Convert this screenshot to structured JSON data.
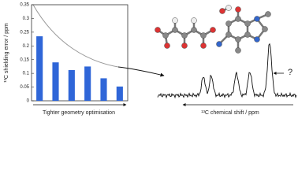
{
  "chart_data": {
    "type": "bar",
    "ylabel": "¹³C shielding error / ppm",
    "xlabel": "Tighter geometry optimisation",
    "annotations": [
      "¹³C chemical shift / ppm",
      "?"
    ],
    "categories": [
      null,
      null,
      null,
      null,
      null,
      null
    ],
    "values": [
      0.235,
      0.14,
      0.112,
      0.125,
      0.082,
      0.052
    ],
    "color": "#2f66d8",
    "ylim": [
      0,
      0.35
    ],
    "yticks": [
      0,
      0.05,
      0.1,
      0.15,
      0.2,
      0.25,
      0.3,
      0.35
    ]
  }
}
